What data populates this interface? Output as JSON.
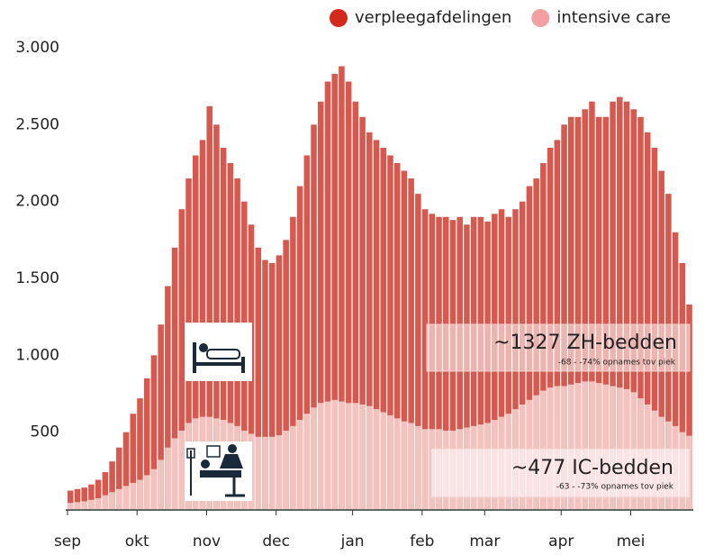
{
  "chart_data": {
    "type": "bar",
    "categories": [
      "sep",
      null,
      null,
      null,
      null,
      null,
      null,
      null,
      null,
      null,
      "okt",
      null,
      null,
      null,
      null,
      null,
      null,
      null,
      null,
      null,
      "nov",
      null,
      null,
      null,
      null,
      null,
      null,
      null,
      null,
      null,
      "dec",
      null,
      null,
      null,
      null,
      null,
      null,
      null,
      null,
      null,
      null,
      "jan",
      null,
      null,
      null,
      null,
      null,
      null,
      null,
      null,
      null,
      "feb",
      null,
      null,
      null,
      null,
      null,
      null,
      null,
      null,
      "mar",
      null,
      null,
      null,
      null,
      null,
      null,
      null,
      null,
      null,
      null,
      "apr",
      null,
      null,
      null,
      null,
      null,
      null,
      null,
      null,
      null,
      "mei",
      null,
      null,
      null,
      null,
      null,
      null,
      null,
      null
    ],
    "series": [
      {
        "name": "verpleegafdelingen",
        "color": "#d8584e",
        "legend_color": "#d42a1e",
        "values": [
          120,
          130,
          140,
          160,
          190,
          240,
          310,
          400,
          500,
          620,
          720,
          850,
          1000,
          1200,
          1450,
          1700,
          1950,
          2150,
          2300,
          2400,
          2620,
          2500,
          2350,
          2250,
          2150,
          2000,
          1850,
          1700,
          1620,
          1600,
          1650,
          1750,
          1900,
          2100,
          2300,
          2500,
          2650,
          2780,
          2830,
          2880,
          2780,
          2650,
          2550,
          2450,
          2400,
          2350,
          2300,
          2250,
          2200,
          2150,
          2050,
          1950,
          1920,
          1900,
          1900,
          1880,
          1900,
          1850,
          1900,
          1900,
          1870,
          1920,
          1950,
          1900,
          1950,
          2000,
          2100,
          2150,
          2250,
          2350,
          2400,
          2500,
          2550,
          2550,
          2600,
          2650,
          2550,
          2550,
          2650,
          2680,
          2650,
          2600,
          2550,
          2450,
          2350,
          2200,
          2050,
          1800,
          1600,
          1330
        ]
      },
      {
        "name": "intensive care",
        "color": "#f3c2be",
        "legend_color": "#f4a0a0",
        "values": [
          40,
          45,
          50,
          60,
          70,
          90,
          110,
          130,
          150,
          170,
          190,
          220,
          260,
          320,
          400,
          460,
          510,
          560,
          590,
          600,
          600,
          590,
          580,
          560,
          540,
          510,
          490,
          470,
          470,
          470,
          480,
          510,
          540,
          580,
          620,
          660,
          690,
          700,
          710,
          700,
          690,
          690,
          680,
          670,
          650,
          630,
          610,
          590,
          570,
          560,
          540,
          520,
          520,
          520,
          510,
          510,
          520,
          530,
          540,
          550,
          560,
          580,
          600,
          620,
          650,
          680,
          710,
          740,
          770,
          790,
          800,
          800,
          810,
          820,
          830,
          830,
          820,
          810,
          800,
          790,
          780,
          760,
          720,
          680,
          640,
          600,
          570,
          540,
          500,
          477
        ]
      }
    ],
    "ylim": [
      0,
      3000
    ],
    "yticks": [
      500,
      {
        "value": 1000,
        "label": "1.000"
      },
      {
        "value": 1500,
        "label": "1.500"
      },
      {
        "value": 2000,
        "label": "2.000"
      },
      {
        "value": 2500,
        "label": "2.500"
      },
      {
        "value": 3000,
        "label": "3.000"
      }
    ],
    "grid": false,
    "annotations": [
      {
        "title": "~1327 ZH-bedden",
        "note": "-68 - -74% opnames tov piek"
      },
      {
        "title": "~477 IC-bedden",
        "note": "-63 - -73% opnames tov piek"
      }
    ]
  }
}
